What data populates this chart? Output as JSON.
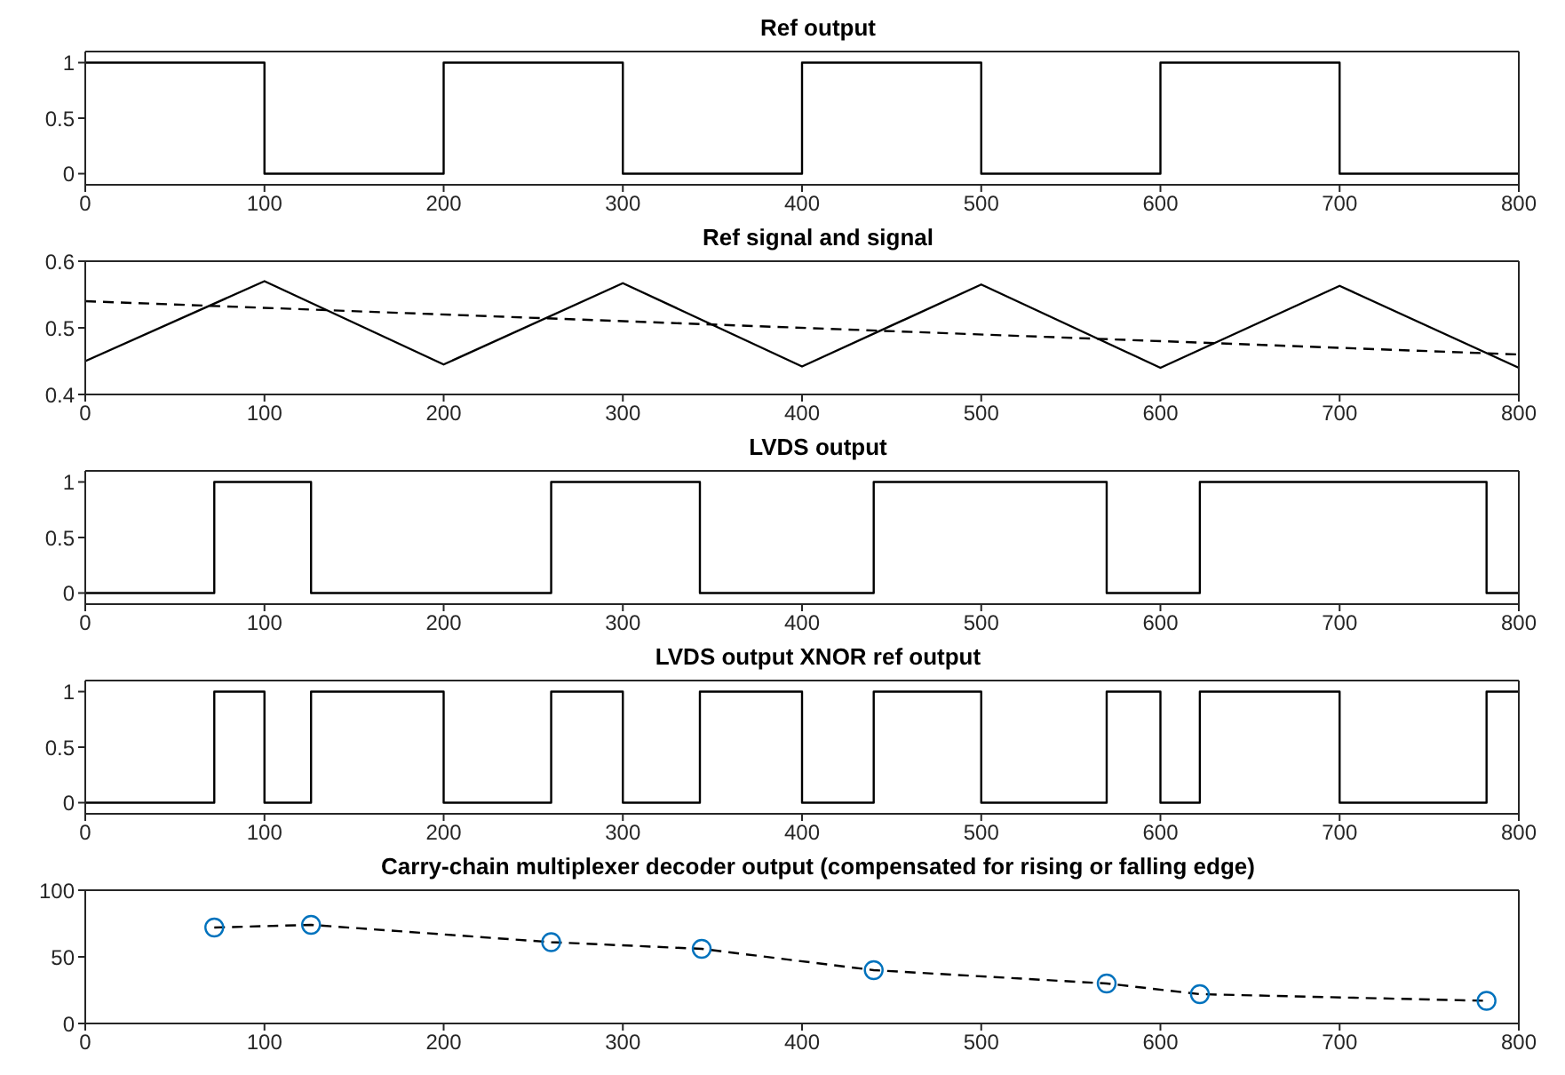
{
  "chart_data": [
    {
      "type": "step",
      "title": "Ref output",
      "xlim": [
        0,
        800
      ],
      "xticks": [
        0,
        100,
        200,
        300,
        400,
        500,
        600,
        700,
        800
      ],
      "ylim": [
        -0.1,
        1.1
      ],
      "yticks": [
        0,
        0.5,
        1
      ],
      "series": [
        {
          "color": "#000000",
          "x": [
            0,
            100,
            200,
            300,
            400,
            500,
            600,
            700,
            800
          ],
          "values": [
            1,
            0,
            1,
            0,
            1,
            0,
            1,
            0,
            0
          ]
        }
      ]
    },
    {
      "type": "line",
      "title": "Ref signal and signal",
      "xlim": [
        0,
        800
      ],
      "xticks": [
        0,
        100,
        200,
        300,
        400,
        500,
        600,
        700,
        800
      ],
      "ylim": [
        0.4,
        0.6
      ],
      "yticks": [
        0.4,
        0.5,
        0.6
      ],
      "marker": "none",
      "series": [
        {
          "color": "#000000",
          "line_style": "solid",
          "x": [
            0,
            100,
            200,
            300,
            400,
            500,
            600,
            700,
            800
          ],
          "values": [
            0.45,
            0.57,
            0.445,
            0.567,
            0.442,
            0.565,
            0.44,
            0.563,
            0.44
          ]
        },
        {
          "color": "#000000",
          "line_style": "dashed",
          "x": [
            0,
            800
          ],
          "values": [
            0.54,
            0.46
          ]
        }
      ]
    },
    {
      "type": "step",
      "title": "LVDS output",
      "xlim": [
        0,
        800
      ],
      "xticks": [
        0,
        100,
        200,
        300,
        400,
        500,
        600,
        700,
        800
      ],
      "ylim": [
        -0.1,
        1.1
      ],
      "yticks": [
        0,
        0.5,
        1
      ],
      "series": [
        {
          "color": "#000000",
          "x": [
            0,
            72,
            126,
            260,
            343,
            440,
            570,
            622,
            782,
            800
          ],
          "values": [
            0,
            1,
            0,
            1,
            0,
            1,
            0,
            1,
            0,
            0
          ]
        }
      ]
    },
    {
      "type": "step",
      "title": "LVDS output XNOR ref output",
      "xlim": [
        0,
        800
      ],
      "xticks": [
        0,
        100,
        200,
        300,
        400,
        500,
        600,
        700,
        800
      ],
      "ylim": [
        -0.1,
        1.1
      ],
      "yticks": [
        0,
        0.5,
        1
      ],
      "series": [
        {
          "color": "#000000",
          "x": [
            0,
            72,
            100,
            126,
            200,
            260,
            300,
            343,
            400,
            440,
            500,
            570,
            600,
            622,
            700,
            782,
            800
          ],
          "values": [
            0,
            1,
            0,
            1,
            0,
            1,
            0,
            1,
            0,
            1,
            0,
            1,
            0,
            1,
            0,
            1,
            1
          ]
        }
      ]
    },
    {
      "type": "line",
      "title": "Carry-chain multiplexer decoder output (compensated for rising or falling edge)",
      "xlim": [
        0,
        800
      ],
      "xticks": [
        0,
        100,
        200,
        300,
        400,
        500,
        600,
        700,
        800
      ],
      "ylim": [
        0,
        100
      ],
      "yticks": [
        0,
        50,
        100
      ],
      "series": [
        {
          "color": "#000000",
          "line_style": "dashed",
          "marker": "none",
          "x": [
            72,
            126,
            260,
            344,
            440,
            570,
            622,
            782
          ],
          "values": [
            72,
            74,
            61,
            56,
            40,
            30,
            22,
            17
          ]
        },
        {
          "type": "scatter",
          "color": "#0072bd",
          "marker": "circle",
          "x": [
            72,
            126,
            260,
            344,
            440,
            570,
            622,
            782
          ],
          "values": [
            72,
            74,
            61,
            56,
            40,
            30,
            22,
            17
          ]
        }
      ]
    }
  ]
}
